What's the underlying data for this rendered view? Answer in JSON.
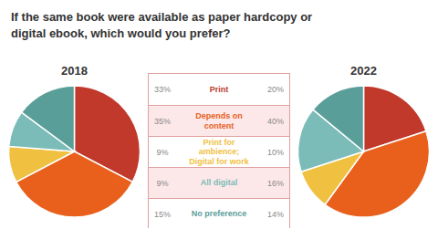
{
  "chart_data": {
    "type": "pie",
    "title": "If the same book were available as paper hardcopy or\ndigital ebook, which would you prefer?",
    "categories": [
      "Print",
      "Depends on\ncontent",
      "Print for\nambience;\nDigital for work",
      "All digital",
      "No preference"
    ],
    "colors": [
      "#c0392b",
      "#e8601c",
      "#f0c040",
      "#7bbcb8",
      "#5a9e9a"
    ],
    "series": [
      {
        "name": "2018",
        "values": [
          33,
          35,
          9,
          9,
          15
        ],
        "value_labels": [
          "33%",
          "35%",
          "9%",
          "9%",
          "15%"
        ]
      },
      {
        "name": "2022",
        "values": [
          20,
          40,
          10,
          16,
          14
        ],
        "value_labels": [
          "20%",
          "40%",
          "10%",
          "16%",
          "14%"
        ]
      }
    ]
  }
}
